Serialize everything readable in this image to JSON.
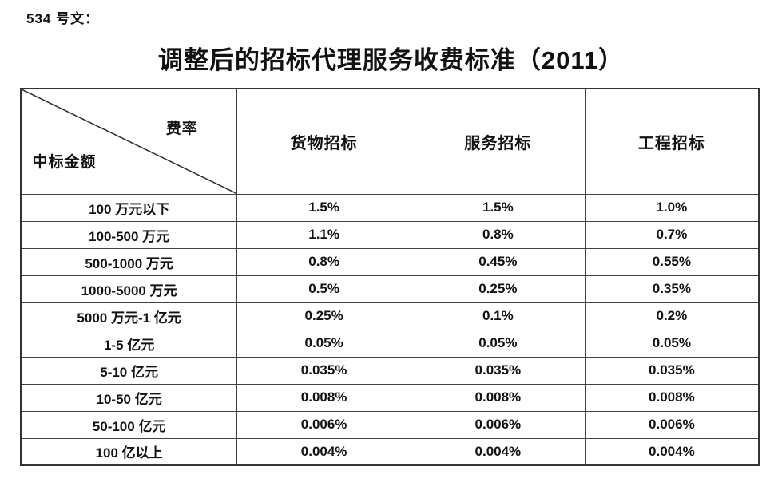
{
  "doc_number": "534 号文：",
  "title": "调整后的招标代理服务收费标准（2011）",
  "colors": {
    "text": "#111111",
    "border": "#404040",
    "background": "#ffffff"
  },
  "table": {
    "corner": {
      "top_right": "费率",
      "bottom_left": "中标金额"
    },
    "columns": [
      "货物招标",
      "服务招标",
      "工程招标"
    ],
    "rows": [
      {
        "label": "100 万元以下",
        "values": [
          "1.5%",
          "1.5%",
          "1.0%"
        ]
      },
      {
        "label": "100-500 万元",
        "values": [
          "1.1%",
          "0.8%",
          "0.7%"
        ]
      },
      {
        "label": "500-1000 万元",
        "values": [
          "0.8%",
          "0.45%",
          "0.55%"
        ]
      },
      {
        "label": "1000-5000 万元",
        "values": [
          "0.5%",
          "0.25%",
          "0.35%"
        ]
      },
      {
        "label": "5000 万元-1 亿元",
        "values": [
          "0.25%",
          "0.1%",
          "0.2%"
        ]
      },
      {
        "label": "1-5 亿元",
        "values": [
          "0.05%",
          "0.05%",
          "0.05%"
        ]
      },
      {
        "label": "5-10 亿元",
        "values": [
          "0.035%",
          "0.035%",
          "0.035%"
        ]
      },
      {
        "label": "10-50 亿元",
        "values": [
          "0.008%",
          "0.008%",
          "0.008%"
        ]
      },
      {
        "label": "50-100 亿元",
        "values": [
          "0.006%",
          "0.006%",
          "0.006%"
        ]
      },
      {
        "label": "100 亿以上",
        "values": [
          "0.004%",
          "0.004%",
          "0.004%"
        ]
      }
    ]
  }
}
